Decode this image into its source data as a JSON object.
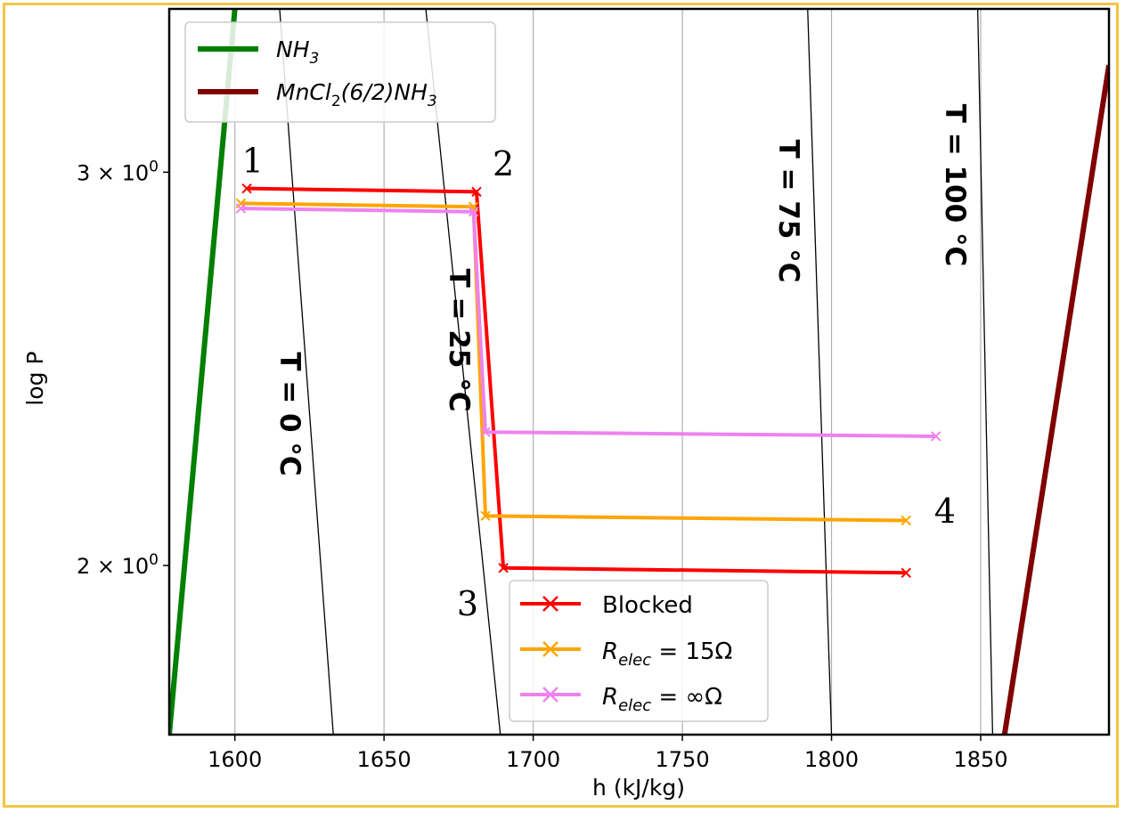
{
  "chart_data": {
    "type": "line",
    "xlabel": "h (kJ/kg)",
    "ylabel": "log P",
    "xlim": [
      1578,
      1893
    ],
    "ylim_log": [
      1.68,
      3.55
    ],
    "xticks": [
      1600,
      1650,
      1700,
      1750,
      1800,
      1850
    ],
    "xtick_labels": [
      "1600",
      "1650",
      "1700",
      "1750",
      "1800",
      "1850"
    ],
    "yticks": [
      {
        "value": 2,
        "label_main": "2 × 10",
        "label_exp": "0"
      },
      {
        "value": 3,
        "label_main": "3 × 10",
        "label_exp": "0"
      }
    ],
    "grid": "vertical",
    "boundary_lines": [
      {
        "name": "NH3",
        "label_base": "NH",
        "label_sub": "3",
        "label_tail": "",
        "color": "#008000",
        "points": [
          [
            1578,
            1.68
          ],
          [
            1600,
            3.55
          ]
        ]
      },
      {
        "name": "MnCl2(6/2)NH3",
        "label_base": "MnCl",
        "label_sub": "2",
        "label_tail": "(6/2)NH",
        "label_sub2": "3",
        "color": "#800000",
        "points": [
          [
            1858,
            1.68
          ],
          [
            1893,
            3.35
          ]
        ]
      }
    ],
    "isotherms": [
      {
        "label": "T = 0 °C",
        "points": [
          [
            1615,
            3.55
          ],
          [
            1633,
            1.68
          ]
        ]
      },
      {
        "label": "T = 25 °C",
        "points": [
          [
            1664,
            3.55
          ],
          [
            1689,
            1.68
          ]
        ]
      },
      {
        "label": "T = 75 °C",
        "points": [
          [
            1792,
            3.55
          ],
          [
            1800,
            1.68
          ]
        ]
      },
      {
        "label": "T = 100 °C",
        "points": [
          [
            1849,
            3.55
          ],
          [
            1854,
            1.68
          ]
        ]
      }
    ],
    "series": [
      {
        "name": "Blocked",
        "color": "#ff0000",
        "points": [
          [
            1604,
            2.95
          ],
          [
            1681,
            2.94
          ],
          [
            1690,
            1.995
          ],
          [
            1825,
            1.985
          ]
        ]
      },
      {
        "name": "R_elec = 15Ω",
        "color": "#ffa500",
        "points": [
          [
            1602,
            2.905
          ],
          [
            1680,
            2.895
          ],
          [
            1684,
            2.105
          ],
          [
            1825,
            2.095
          ]
        ]
      },
      {
        "name": "R_elec = ∞Ω",
        "color": "#ee82ee",
        "points": [
          [
            1602,
            2.89
          ],
          [
            1680,
            2.88
          ],
          [
            1684,
            2.295
          ],
          [
            1835,
            2.285
          ]
        ]
      }
    ],
    "point_labels": [
      {
        "text": "1",
        "at": [
          1606,
          3.0
        ]
      },
      {
        "text": "2",
        "at": [
          1690,
          2.99
        ]
      },
      {
        "text": "3",
        "at": [
          1678,
          1.9
        ]
      },
      {
        "text": "4",
        "at": [
          1838,
          2.09
        ]
      }
    ],
    "legend_lines": {
      "placement": "top-left",
      "entries": [
        "NH3",
        "MnCl2(6/2)NH3"
      ]
    },
    "legend_series": {
      "placement": "lower-center",
      "entries": [
        "Blocked",
        "R_elec = 15Ω",
        "R_elec = ∞Ω"
      ]
    },
    "legend_series_labels": {
      "blocked": "Blocked",
      "r15_base": "R",
      "r15_sub": "elec",
      "r15_tail": " = 15Ω",
      "rinf_base": "R",
      "rinf_sub": "elec",
      "rinf_tail": " = ∞Ω"
    },
    "legend_line_labels": {
      "nh3_base": "NH",
      "nh3_sub": "3",
      "mn_base": "MnCl",
      "mn_sub": "2",
      "mn_mid": "(6/2)NH",
      "mn_sub2": "3"
    }
  }
}
